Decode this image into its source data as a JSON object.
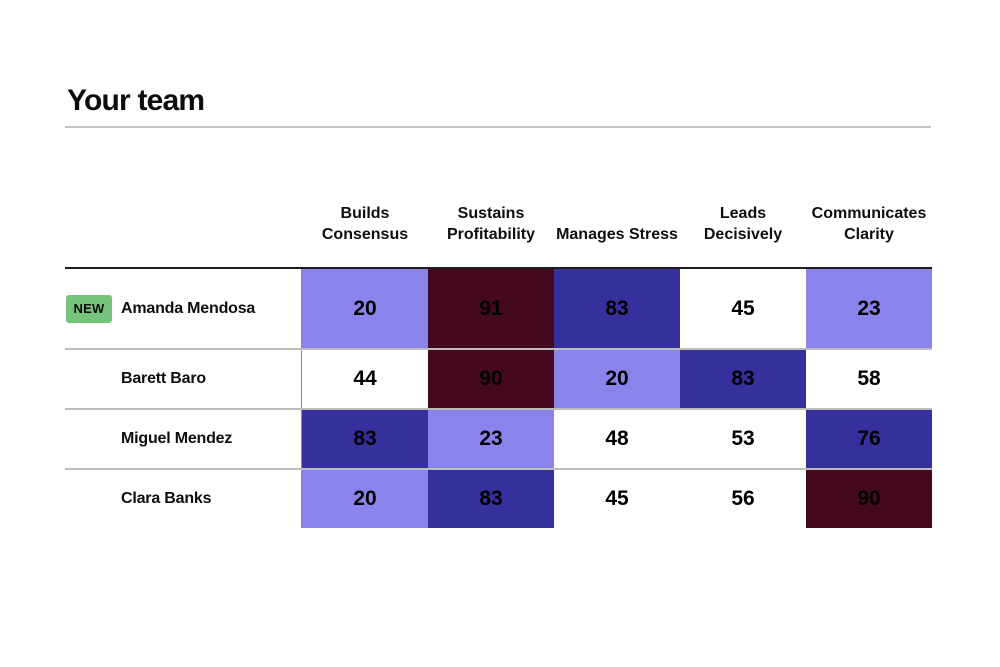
{
  "page": {
    "title": "Your team"
  },
  "badge": {
    "label": "NEW",
    "color": "#74c47b"
  },
  "palette": {
    "low": "#8b83ec",
    "mid": "#ffffff",
    "high": "#36309d",
    "highest": "#45091f"
  },
  "table": {
    "columns": [
      {
        "label": "Builds Consensus"
      },
      {
        "label": "Sustains Profitability"
      },
      {
        "label": "Manages Stress"
      },
      {
        "label": "Leads Decisively"
      },
      {
        "label": "Communicates Clarity"
      }
    ],
    "rows": [
      {
        "name": "Amanda Mendosa",
        "is_new": true,
        "cells": [
          {
            "value": 20,
            "level": "low",
            "color": "#8b83ec"
          },
          {
            "value": 91,
            "level": "highest",
            "color": "#45091f"
          },
          {
            "value": 83,
            "level": "high",
            "color": "#36309d"
          },
          {
            "value": 45,
            "level": "mid",
            "color": "#ffffff"
          },
          {
            "value": 23,
            "level": "low",
            "color": "#8b83ec"
          }
        ]
      },
      {
        "name": "Barett Baro",
        "is_new": false,
        "cells": [
          {
            "value": 44,
            "level": "mid",
            "color": "#ffffff"
          },
          {
            "value": 90,
            "level": "highest",
            "color": "#45091f"
          },
          {
            "value": 20,
            "level": "low",
            "color": "#8b83ec"
          },
          {
            "value": 83,
            "level": "high",
            "color": "#36309d"
          },
          {
            "value": 58,
            "level": "mid",
            "color": "#ffffff"
          }
        ]
      },
      {
        "name": "Miguel Mendez",
        "is_new": false,
        "cells": [
          {
            "value": 83,
            "level": "high",
            "color": "#36309d"
          },
          {
            "value": 23,
            "level": "low",
            "color": "#8b83ec"
          },
          {
            "value": 48,
            "level": "mid",
            "color": "#ffffff"
          },
          {
            "value": 53,
            "level": "mid",
            "color": "#ffffff"
          },
          {
            "value": 76,
            "level": "high",
            "color": "#36309d"
          }
        ]
      },
      {
        "name": "Clara Banks",
        "is_new": false,
        "cells": [
          {
            "value": 20,
            "level": "low",
            "color": "#8b83ec"
          },
          {
            "value": 83,
            "level": "high",
            "color": "#36309d"
          },
          {
            "value": 45,
            "level": "mid",
            "color": "#ffffff"
          },
          {
            "value": 56,
            "level": "mid",
            "color": "#ffffff"
          },
          {
            "value": 90,
            "level": "highest",
            "color": "#45091f"
          }
        ]
      }
    ]
  },
  "chart_data": {
    "type": "heatmap",
    "title": "Your team",
    "x_categories": [
      "Builds Consensus",
      "Sustains Profitability",
      "Manages Stress",
      "Leads Decisively",
      "Communicates Clarity"
    ],
    "y_categories": [
      "Amanda Mendosa",
      "Barett Baro",
      "Miguel Mendez",
      "Clara Banks"
    ],
    "values": [
      [
        20,
        91,
        83,
        45,
        23
      ],
      [
        44,
        90,
        20,
        83,
        58
      ],
      [
        83,
        23,
        48,
        53,
        76
      ],
      [
        20,
        83,
        45,
        56,
        90
      ]
    ],
    "value_range": [
      0,
      100
    ],
    "color_scale": {
      "low": "#8b83ec",
      "mid": "#ffffff",
      "high": "#36309d",
      "highest": "#45091f"
    }
  }
}
